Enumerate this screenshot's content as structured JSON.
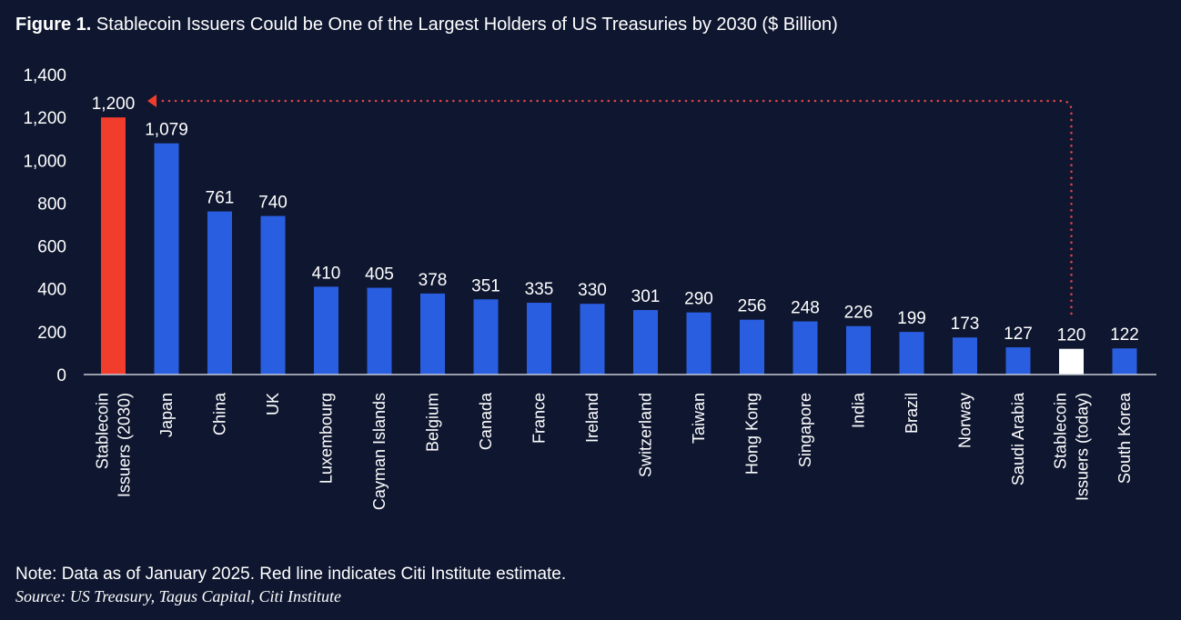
{
  "title": {
    "prefix": "Figure 1.",
    "text": "Stablecoin Issuers Could be One of the Largest Holders of US Treasuries by 2030 ($ Billion)"
  },
  "chart_data": {
    "type": "bar",
    "categories": [
      "Stablecoin Issuers (2030)",
      "Japan",
      "China",
      "UK",
      "Luxembourg",
      "Cayman Islands",
      "Belgium",
      "Canada",
      "France",
      "Ireland",
      "Switzerland",
      "Taiwan",
      "Hong Kong",
      "Singapore",
      "India",
      "Brazil",
      "Norway",
      "Saudi Arabia",
      "Stablecoin Issuers (today)",
      "South Korea"
    ],
    "category_lines": [
      [
        "Stablecoin",
        "Issuers (2030)"
      ],
      [
        "Japan"
      ],
      [
        "China"
      ],
      [
        "UK"
      ],
      [
        "Luxembourg"
      ],
      [
        "Cayman Islands"
      ],
      [
        "Belgium"
      ],
      [
        "Canada"
      ],
      [
        "France"
      ],
      [
        "Ireland"
      ],
      [
        "Switzerland"
      ],
      [
        "Taiwan"
      ],
      [
        "Hong Kong"
      ],
      [
        "Singapore"
      ],
      [
        "India"
      ],
      [
        "Brazil"
      ],
      [
        "Norway"
      ],
      [
        "Saudi Arabia"
      ],
      [
        "Stablecoin",
        "Issuers (today)"
      ],
      [
        "South Korea"
      ]
    ],
    "values": [
      1200,
      1079,
      761,
      740,
      410,
      405,
      378,
      351,
      335,
      330,
      301,
      290,
      256,
      248,
      226,
      199,
      173,
      127,
      120,
      122
    ],
    "value_labels": [
      "1,200",
      "1,079",
      "761",
      "740",
      "410",
      "405",
      "378",
      "351",
      "335",
      "330",
      "301",
      "290",
      "256",
      "248",
      "226",
      "199",
      "173",
      "127",
      "120",
      "122"
    ],
    "bar_colors": [
      "#f23c2c",
      "#2a5ee0",
      "#2a5ee0",
      "#2a5ee0",
      "#2a5ee0",
      "#2a5ee0",
      "#2a5ee0",
      "#2a5ee0",
      "#2a5ee0",
      "#2a5ee0",
      "#2a5ee0",
      "#2a5ee0",
      "#2a5ee0",
      "#2a5ee0",
      "#2a5ee0",
      "#2a5ee0",
      "#2a5ee0",
      "#2a5ee0",
      "#ffffff",
      "#2a5ee0"
    ],
    "ylim": [
      0,
      1400
    ],
    "yticks": [
      0,
      200,
      400,
      600,
      800,
      1000,
      1200,
      1400
    ],
    "ytick_labels": [
      "0",
      "200",
      "400",
      "600",
      "800",
      "1,000",
      "1,200",
      "1,400"
    ],
    "grid": false,
    "annotation": {
      "type": "dotted-arrow",
      "from": "Stablecoin Issuers (today)",
      "to": "Stablecoin Issuers (2030)",
      "color": "#e0454a"
    },
    "xlabel": "",
    "ylabel": ""
  },
  "footer": {
    "note": "Note: Data as of January 2025. Red line indicates Citi Institute estimate.",
    "source": "Source: US Treasury, Tagus Capital, Citi Institute"
  },
  "colors": {
    "background": "#0f1730",
    "blue": "#2a5ee0",
    "red": "#f23c2c",
    "today": "#ffffff"
  }
}
